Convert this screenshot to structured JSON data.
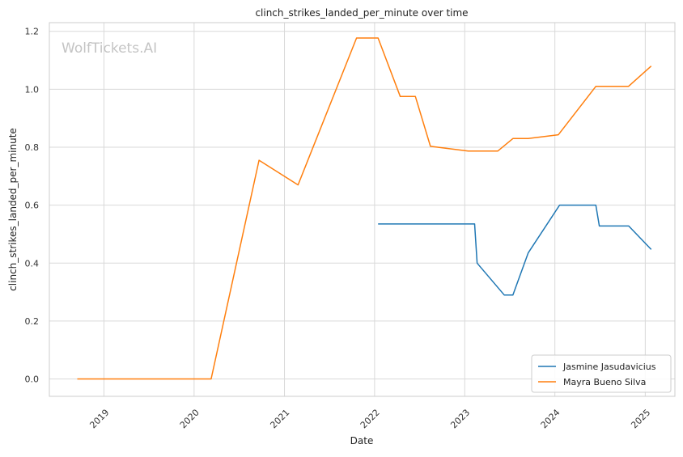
{
  "chart_data": {
    "type": "line",
    "title": "clinch_strikes_landed_per_minute over time",
    "xlabel": "Date",
    "ylabel": "clinch_strikes_landed_per_minute",
    "x_ticks": [
      "2019",
      "2020",
      "2021",
      "2022",
      "2023",
      "2024",
      "2025"
    ],
    "y_ticks": [
      "0.0",
      "0.2",
      "0.4",
      "0.6",
      "0.8",
      "1.0",
      "1.2"
    ],
    "ylim": [
      -0.06,
      1.23
    ],
    "xlim": [
      "2018-05-25",
      "2025-05-01"
    ],
    "grid": true,
    "legend_position": "lower-right",
    "watermark": "WolfTickets.AI",
    "series": [
      {
        "name": "Jasmine Jasudavicius",
        "color": "#1f77b4",
        "points": [
          [
            "2022-01-15",
            0.535
          ],
          [
            "2023-02-10",
            0.535
          ],
          [
            "2023-02-20",
            0.4
          ],
          [
            "2023-06-10",
            0.29
          ],
          [
            "2023-07-15",
            0.29
          ],
          [
            "2023-09-15",
            0.435
          ],
          [
            "2024-01-20",
            0.6
          ],
          [
            "2024-06-15",
            0.6
          ],
          [
            "2024-06-29",
            0.528
          ],
          [
            "2024-10-26",
            0.528
          ],
          [
            "2025-01-25",
            0.447
          ]
        ]
      },
      {
        "name": "Mayra Bueno Silva",
        "color": "#ff7f0e",
        "points": [
          [
            "2018-09-15",
            0.0
          ],
          [
            "2020-03-10",
            0.0
          ],
          [
            "2020-09-20",
            0.755
          ],
          [
            "2021-02-25",
            0.67
          ],
          [
            "2021-10-20",
            1.177
          ],
          [
            "2022-01-15",
            1.177
          ],
          [
            "2022-04-15",
            0.975
          ],
          [
            "2022-06-15",
            0.975
          ],
          [
            "2022-08-15",
            0.803
          ],
          [
            "2023-01-15",
            0.787
          ],
          [
            "2023-05-15",
            0.787
          ],
          [
            "2023-07-15",
            0.83
          ],
          [
            "2023-09-15",
            0.83
          ],
          [
            "2024-01-15",
            0.843
          ],
          [
            "2024-06-15",
            1.01
          ],
          [
            "2024-10-25",
            1.01
          ],
          [
            "2025-01-25",
            1.08
          ]
        ]
      }
    ]
  }
}
